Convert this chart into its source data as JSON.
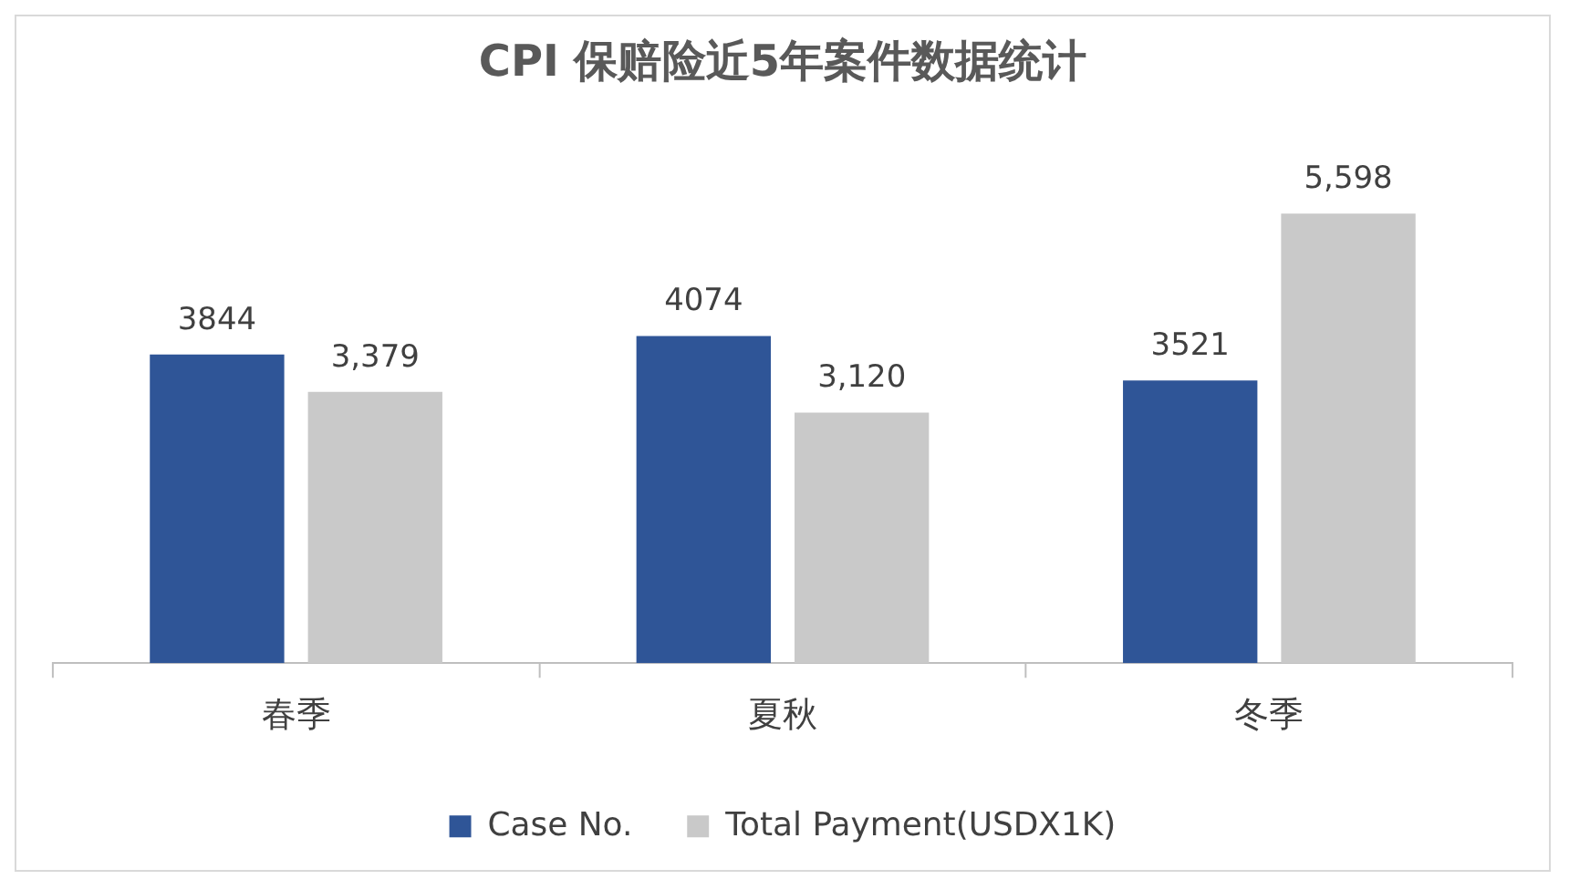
{
  "chart_data": {
    "type": "bar",
    "title": "CPI 保赔险近5年案件数据统计",
    "categories": [
      "春季",
      "夏秋",
      "冬季"
    ],
    "series": [
      {
        "name": "Case No.",
        "color": "#2f5597",
        "values": [
          3844,
          4074,
          3521
        ],
        "value_labels": [
          "3844",
          "4074",
          "3521"
        ]
      },
      {
        "name": "Total Payment(USDX1K)",
        "color": "#c9c9c9",
        "values": [
          3379,
          3120,
          5598
        ],
        "value_labels": [
          "3,379",
          "3,120",
          "5,598"
        ]
      }
    ],
    "tick_labels": "x",
    "grid": false,
    "legend": "bottom"
  }
}
